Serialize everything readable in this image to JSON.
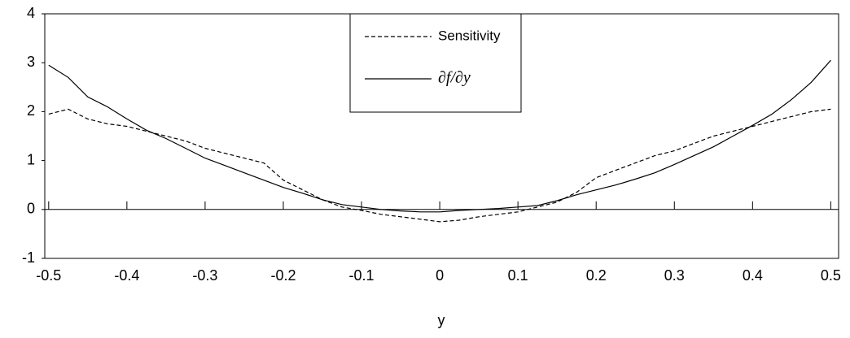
{
  "chart_data": {
    "type": "line",
    "xlabel": "y",
    "x": [
      -0.5,
      -0.475,
      -0.45,
      -0.425,
      -0.4,
      -0.375,
      -0.35,
      -0.325,
      -0.3,
      -0.275,
      -0.25,
      -0.225,
      -0.2,
      -0.175,
      -0.15,
      -0.125,
      -0.1,
      -0.075,
      -0.05,
      -0.025,
      0,
      0.025,
      0.05,
      0.075,
      0.1,
      0.125,
      0.15,
      0.175,
      0.2,
      0.225,
      0.25,
      0.275,
      0.3,
      0.325,
      0.35,
      0.375,
      0.4,
      0.425,
      0.45,
      0.475,
      0.5
    ],
    "series": [
      {
        "name": "Sensitivity",
        "color": "#000000",
        "dash": true,
        "values": [
          1.95,
          2.05,
          1.85,
          1.75,
          1.7,
          1.6,
          1.5,
          1.4,
          1.25,
          1.15,
          1.05,
          0.95,
          0.6,
          0.4,
          0.2,
          0.05,
          -0.02,
          -0.1,
          -0.15,
          -0.2,
          -0.25,
          -0.22,
          -0.15,
          -0.1,
          -0.05,
          0.05,
          0.15,
          0.35,
          0.65,
          0.8,
          0.95,
          1.1,
          1.2,
          1.35,
          1.5,
          1.6,
          1.7,
          1.8,
          1.9,
          2.0,
          2.05
        ]
      },
      {
        "name": "∂f/∂y",
        "color": "#000000",
        "dash": false,
        "values": [
          2.95,
          2.7,
          2.3,
          2.1,
          1.85,
          1.62,
          1.45,
          1.25,
          1.05,
          0.9,
          0.75,
          0.6,
          0.45,
          0.33,
          0.2,
          0.1,
          0.05,
          0.0,
          -0.03,
          -0.05,
          -0.05,
          -0.02,
          0.0,
          0.02,
          0.05,
          0.08,
          0.18,
          0.3,
          0.4,
          0.5,
          0.62,
          0.75,
          0.92,
          1.1,
          1.28,
          1.5,
          1.72,
          1.95,
          2.25,
          2.6,
          3.05
        ]
      }
    ],
    "xlim": [
      -0.505,
      0.51
    ],
    "ylim": [
      -1,
      4
    ],
    "xticks": [
      -0.5,
      -0.4,
      -0.3,
      -0.2,
      -0.1,
      0,
      0.1,
      0.2,
      0.3,
      0.4,
      0.5
    ],
    "yticks": [
      -1,
      0,
      1,
      2,
      3,
      4
    ],
    "grid": false,
    "legend": "top-center"
  }
}
